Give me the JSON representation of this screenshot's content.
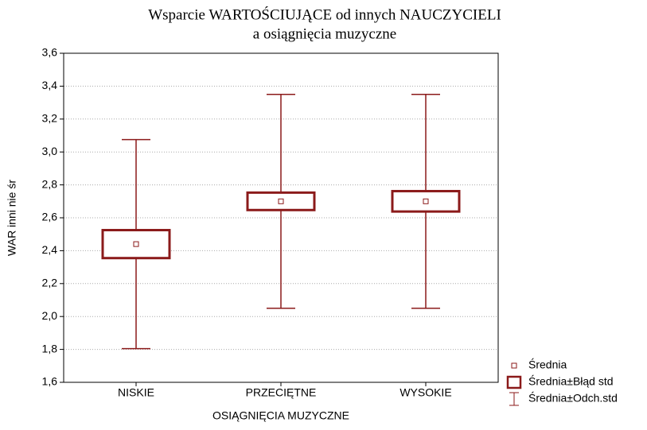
{
  "chart_data": {
    "type": "box",
    "title": [
      "Wsparcie WARTOŚCIUJĄCE od innych NAUCZYCIELI",
      "a osiągnięcia muzyczne"
    ],
    "x_label": "OSIĄGNIĘCIA MUZYCZNE",
    "y_label": "WAR inni nie śr",
    "categories": [
      "NISKIE",
      "PRZECIĘTNE",
      "WYSOKIE"
    ],
    "means": [
      2.44,
      2.7,
      2.7
    ],
    "se": [
      0.085,
      0.053,
      0.062
    ],
    "sd": [
      0.635,
      0.65,
      0.65
    ],
    "color": "#8b1a1a",
    "ylim": [
      1.6,
      3.6
    ],
    "yticks": [
      {
        "value": 1.6,
        "label": "1,6"
      },
      {
        "value": 1.8,
        "label": "1,8"
      },
      {
        "value": 2.0,
        "label": "2,0"
      },
      {
        "value": 2.2,
        "label": "2,2"
      },
      {
        "value": 2.4,
        "label": "2,4"
      },
      {
        "value": 2.6,
        "label": "2,6"
      },
      {
        "value": 2.8,
        "label": "2,8"
      },
      {
        "value": 3.0,
        "label": "3,0"
      },
      {
        "value": 3.2,
        "label": "3,2"
      },
      {
        "value": 3.4,
        "label": "3,4"
      },
      {
        "value": 3.6,
        "label": "3,6"
      }
    ],
    "grid": true,
    "legend": [
      "Średnia",
      "Średnia±Błąd std",
      "Średnia±Odch.std"
    ]
  }
}
